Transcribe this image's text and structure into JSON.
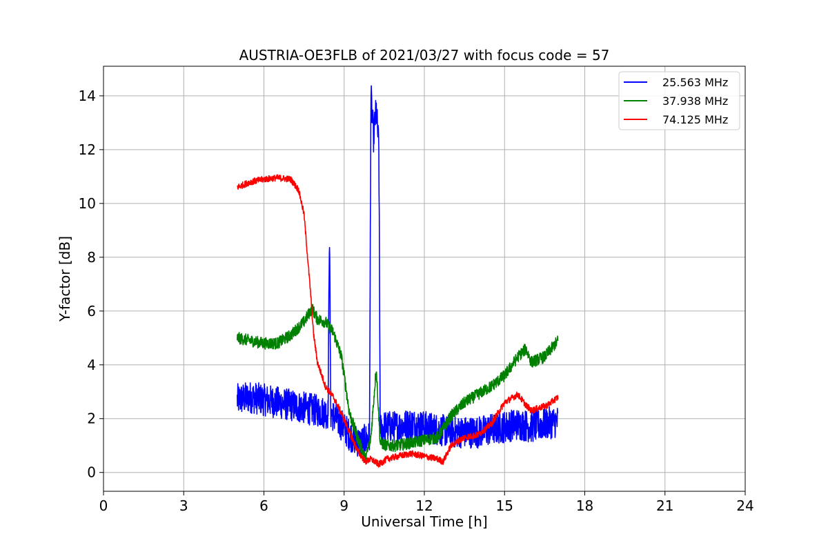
{
  "chart_data": {
    "type": "line",
    "title": "AUSTRIA-OE3FLB of 2021/03/27 with focus code = 57",
    "xlabel": "Universal Time [h]",
    "ylabel": "Y-factor [dB]",
    "xlim": [
      0,
      24
    ],
    "ylim": [
      -0.7,
      15.1
    ],
    "xticks": [
      0,
      3,
      6,
      9,
      12,
      15,
      18,
      21,
      24
    ],
    "yticks": [
      0,
      2,
      4,
      6,
      8,
      10,
      12,
      14
    ],
    "grid": true,
    "legend_position": "top-right",
    "series": [
      {
        "name": "25.563 MHz",
        "color": "#0000ff",
        "noise": 0.6,
        "x": [
          5.0,
          5.5,
          6.0,
          6.5,
          7.0,
          7.5,
          8.0,
          8.4,
          8.45,
          8.5,
          8.8,
          9.2,
          9.6,
          9.95,
          10.0,
          10.1,
          10.2,
          10.3,
          10.35,
          10.5,
          11.0,
          11.5,
          12.0,
          12.5,
          13.0,
          13.5,
          14.0,
          14.5,
          15.0,
          15.5,
          16.0,
          16.5,
          17.0
        ],
        "y": [
          2.7,
          2.8,
          2.7,
          2.6,
          2.5,
          2.4,
          2.3,
          2.2,
          9.3,
          2.2,
          1.9,
          1.4,
          1.1,
          1.3,
          14.0,
          12.5,
          13.5,
          12.0,
          1.6,
          1.7,
          1.7,
          1.8,
          1.7,
          1.6,
          1.5,
          1.5,
          1.5,
          1.6,
          1.7,
          1.8,
          1.7,
          1.8,
          1.9
        ]
      },
      {
        "name": "37.938 MHz",
        "color": "#008000",
        "noise": 0.22,
        "x": [
          5.0,
          5.5,
          6.0,
          6.5,
          7.0,
          7.5,
          7.8,
          8.0,
          8.3,
          8.6,
          8.9,
          9.2,
          9.5,
          9.8,
          10.0,
          10.2,
          10.35,
          10.6,
          11.0,
          11.5,
          12.0,
          12.5,
          13.0,
          13.5,
          14.0,
          14.5,
          15.0,
          15.5,
          15.8,
          16.0,
          16.5,
          17.0
        ],
        "y": [
          5.0,
          4.9,
          4.8,
          4.8,
          5.1,
          5.6,
          6.1,
          5.7,
          5.6,
          5.2,
          4.3,
          2.2,
          1.3,
          0.5,
          1.3,
          3.9,
          1.1,
          1.0,
          1.0,
          1.1,
          1.2,
          1.3,
          2.1,
          2.6,
          2.9,
          3.2,
          3.6,
          4.3,
          4.6,
          4.1,
          4.3,
          4.9
        ]
      },
      {
        "name": "74.125 MHz",
        "color": "#ff0000",
        "noise": 0.12,
        "x": [
          5.0,
          5.5,
          6.0,
          6.5,
          7.0,
          7.3,
          7.5,
          7.65,
          7.75,
          7.85,
          8.0,
          8.3,
          8.6,
          8.9,
          9.2,
          9.5,
          9.8,
          10.0,
          10.3,
          10.6,
          11.0,
          11.5,
          12.0,
          12.5,
          12.7,
          13.0,
          13.5,
          14.0,
          14.5,
          15.0,
          15.5,
          15.8,
          16.0,
          16.3,
          16.6,
          17.0
        ],
        "y": [
          10.6,
          10.8,
          10.9,
          10.95,
          10.9,
          10.5,
          9.6,
          7.8,
          6.6,
          5.2,
          4.1,
          3.2,
          2.8,
          2.2,
          1.5,
          0.8,
          0.4,
          0.5,
          0.3,
          0.5,
          0.6,
          0.7,
          0.6,
          0.5,
          0.4,
          1.0,
          1.3,
          1.4,
          1.8,
          2.6,
          2.9,
          2.5,
          2.3,
          2.4,
          2.5,
          2.8
        ]
      }
    ]
  }
}
